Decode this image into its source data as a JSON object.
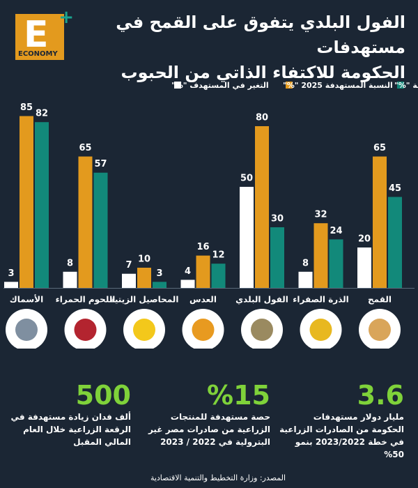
{
  "logo": {
    "letter": "E",
    "word": "ECONOMY"
  },
  "chart_data": {
    "type": "bar",
    "title": [
      "الفول البلدي يتفوق على القمح في مستهدفات",
      "الحكومة للاكتفاء الذاتي من الحبوب"
    ],
    "categories": [
      "القمح",
      "الذرة الصفراء",
      "الفول البلدي",
      "العدس",
      "المحاصيل الزيتية",
      "اللحوم الحمراء",
      "الأسماك"
    ],
    "series": [
      {
        "name": "النسبة الحالية \"%\"",
        "color": "#12897a",
        "values": [
          45,
          24,
          30,
          12,
          3,
          57,
          82
        ]
      },
      {
        "name": "النسبة المستهدفة 2025 \"%\"",
        "color": "#e39a1e",
        "values": [
          65,
          32,
          80,
          16,
          10,
          65,
          85
        ]
      },
      {
        "name": "التغير في المستهدف \"%\"",
        "color": "#ffffff",
        "values": [
          20,
          8,
          50,
          4,
          7,
          8,
          3
        ]
      }
    ]
  },
  "stats": [
    {
      "number": "3.6",
      "text": "مليار دولار مستهدفات الحكومة من الصادرات الزراعية في خطة 2023/2022 بنمو 50%"
    },
    {
      "number": "%15",
      "text": "حصة مستهدفة للمنتجات الزراعية من صادرات مصر غير البترولية في 2022 / 2023"
    },
    {
      "number": "500",
      "text": "ألف فدان زيادة مستهدفة في الرقعة الزراعية خلال العام المالي المقبل"
    }
  ],
  "source": "المصدر: وزارة التخطيط والتنمية الاقتصادية"
}
